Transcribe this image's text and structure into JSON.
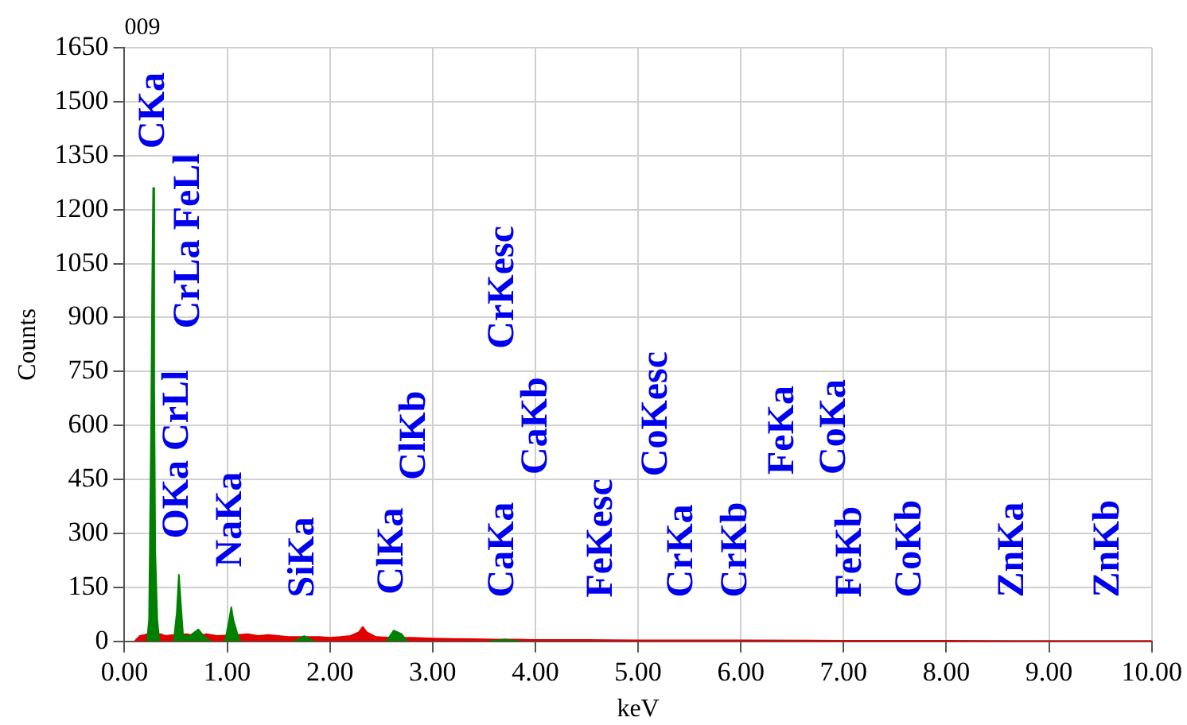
{
  "chart_data": {
    "type": "area",
    "title": "009",
    "xlabel": "keV",
    "ylabel": "Counts",
    "xlim": [
      0,
      10
    ],
    "ylim": [
      0,
      1650
    ],
    "xticks": [
      {
        "value": 0,
        "label": "0.00"
      },
      {
        "value": 1,
        "label": "1.00"
      },
      {
        "value": 2,
        "label": "2.00"
      },
      {
        "value": 3,
        "label": "3.00"
      },
      {
        "value": 4,
        "label": "4.00"
      },
      {
        "value": 5,
        "label": "5.00"
      },
      {
        "value": 6,
        "label": "6.00"
      },
      {
        "value": 7,
        "label": "7.00"
      },
      {
        "value": 8,
        "label": "8.00"
      },
      {
        "value": 9,
        "label": "9.00"
      },
      {
        "value": 10,
        "label": "10.00"
      }
    ],
    "yticks": [
      0,
      150,
      300,
      450,
      600,
      750,
      900,
      1050,
      1200,
      1350,
      1500,
      1650
    ],
    "grid": true,
    "legend": false,
    "marker": "none",
    "series": [
      {
        "color": "#e00000",
        "x": [
          0.1,
          0.15,
          0.2,
          0.22,
          0.35,
          0.4,
          0.48,
          0.6,
          0.7,
          0.8,
          0.9,
          1.1,
          1.2,
          1.3,
          1.4,
          1.5,
          1.6,
          1.7,
          1.9,
          2.0,
          2.1,
          2.2,
          2.28,
          2.32,
          2.36,
          2.45,
          2.6,
          2.8,
          3.0,
          3.2,
          3.4,
          3.6,
          3.8,
          4.0,
          4.5,
          5.0,
          6.0,
          7.0,
          8.0,
          9.0,
          10.0
        ],
        "values": [
          0,
          15,
          18,
          20,
          20,
          15,
          18,
          20,
          15,
          20,
          15,
          18,
          20,
          15,
          18,
          15,
          12,
          12,
          12,
          10,
          12,
          15,
          25,
          40,
          25,
          12,
          10,
          10,
          8,
          7,
          6,
          5,
          5,
          4,
          4,
          3,
          3,
          2,
          2,
          1,
          1
        ]
      },
      {
        "color": "#008000",
        "x": [
          0.22,
          0.24,
          0.26,
          0.27,
          0.28,
          0.29,
          0.3,
          0.32,
          0.34,
          0.4,
          0.48,
          0.51,
          0.53,
          0.55,
          0.57,
          0.62,
          0.72,
          0.78,
          0.84,
          0.88,
          0.98,
          1.02,
          1.04,
          1.06,
          1.1,
          1.13,
          1.4,
          1.65,
          1.75,
          1.85,
          2.2,
          2.55,
          2.62,
          2.7,
          2.75,
          3.2,
          3.55,
          3.7,
          3.85
        ],
        "values": [
          0,
          60,
          600,
          980,
          1260,
          700,
          250,
          60,
          0,
          null,
          0,
          80,
          185,
          100,
          20,
          12,
          33,
          12,
          0,
          null,
          0,
          60,
          95,
          60,
          20,
          0,
          null,
          0,
          15,
          0,
          null,
          0,
          30,
          20,
          0,
          null,
          0,
          5,
          0
        ]
      }
    ],
    "annotations": [
      "CKa",
      "CrLa FeLl",
      "OKa CrLl",
      "NaKa",
      "SiKa",
      "ClKa",
      "ClKb",
      "CaKa",
      "CrKesc",
      "CaKb",
      "FeKesc",
      "CoKesc",
      "CrKa",
      "CrKb",
      "FeKa",
      "CoKa",
      "FeKb",
      "CoKb",
      "ZnKa",
      "ZnKb"
    ]
  }
}
